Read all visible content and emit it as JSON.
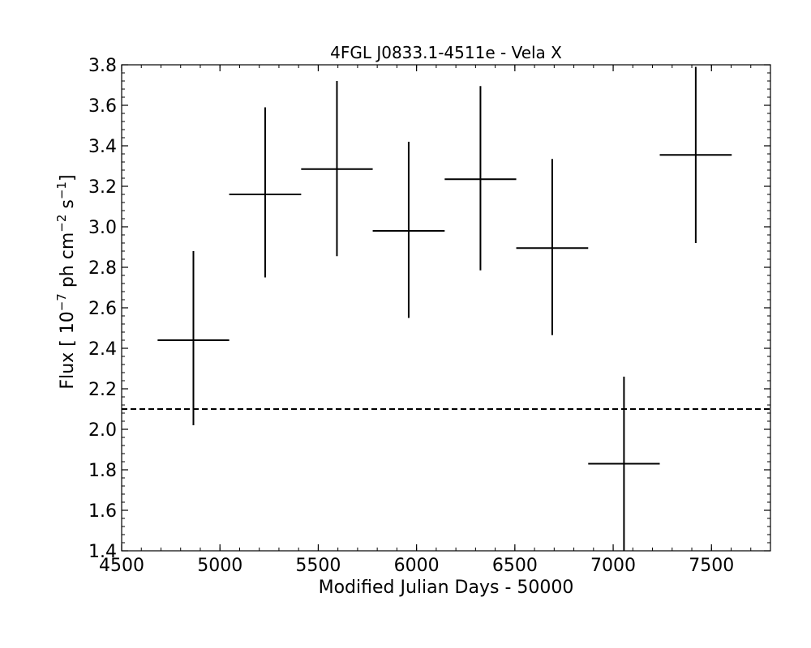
{
  "chart_data": {
    "type": "scatter",
    "title": "4FGL J0833.1-4511e - Vela X",
    "xlabel": "Modified Julian Days - 50000",
    "ylabel": {
      "prefix": "Flux [ 10",
      "exp1": "−7",
      "mid": " ph cm",
      "exp2": "−2",
      "mid2": " s",
      "exp3": "−1",
      "suffix": "]"
    },
    "xlim": [
      4500,
      7800
    ],
    "ylim": [
      1.4,
      3.8
    ],
    "x_ticks": [
      4500,
      5000,
      5500,
      6000,
      6500,
      7000,
      7500
    ],
    "y_ticks": [
      1.4,
      1.6,
      1.8,
      2.0,
      2.2,
      2.4,
      2.6,
      2.8,
      3.0,
      3.2,
      3.4,
      3.6,
      3.8
    ],
    "y_tick_labels": [
      "1.4",
      "1.6",
      "1.8",
      "2.0",
      "2.2",
      "2.4",
      "2.6",
      "2.8",
      "3.0",
      "3.2",
      "3.4",
      "3.6",
      "3.8"
    ],
    "reference_line": {
      "y": 2.1,
      "style": "dashed"
    },
    "points": [
      {
        "x": 4865,
        "xerr": 182,
        "y": 2.44,
        "yerr_low": 0.42,
        "yerr_high": 0.44
      },
      {
        "x": 5230,
        "xerr": 183,
        "y": 3.16,
        "yerr_low": 0.41,
        "yerr_high": 0.43
      },
      {
        "x": 5595,
        "xerr": 182,
        "y": 3.285,
        "yerr_low": 0.43,
        "yerr_high": 0.435
      },
      {
        "x": 5960,
        "xerr": 183,
        "y": 2.98,
        "yerr_low": 0.43,
        "yerr_high": 0.44
      },
      {
        "x": 6325,
        "xerr": 182,
        "y": 3.235,
        "yerr_low": 0.45,
        "yerr_high": 0.46
      },
      {
        "x": 6690,
        "xerr": 183,
        "y": 2.895,
        "yerr_low": 0.43,
        "yerr_high": 0.44
      },
      {
        "x": 7055,
        "xerr": 182,
        "y": 1.83,
        "yerr_low": 0.43,
        "yerr_high": 0.43
      },
      {
        "x": 7420,
        "xerr": 183,
        "y": 3.355,
        "yerr_low": 0.435,
        "yerr_high": 0.435
      }
    ],
    "minor_ticks": {
      "x_step": 100,
      "y_step": 0.04
    },
    "grid": false,
    "colors": {
      "marks": "#000000",
      "axes": "#000000"
    }
  }
}
